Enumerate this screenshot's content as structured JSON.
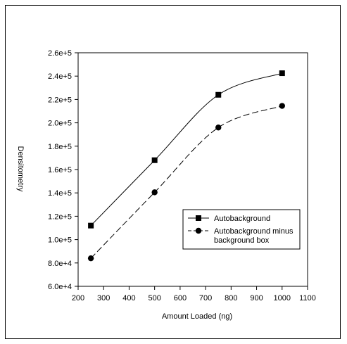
{
  "chart_data": {
    "type": "line",
    "title": "",
    "xlabel": "Amount Loaded (ng)",
    "ylabel": "Densitometry",
    "xlim": [
      200,
      1100
    ],
    "ylim": [
      60000,
      260000
    ],
    "x_ticks": [
      200,
      300,
      400,
      500,
      600,
      700,
      800,
      900,
      1000,
      1100
    ],
    "x_tick_labels": [
      "200",
      "300",
      "400",
      "500",
      "600",
      "700",
      "800",
      "900",
      "1000",
      "1100"
    ],
    "y_ticks": [
      60000,
      80000,
      100000,
      120000,
      140000,
      160000,
      180000,
      200000,
      220000,
      240000,
      260000
    ],
    "y_tick_labels": [
      "6.0e+4",
      "8.0e+4",
      "1.0e+5",
      "1.2e+5",
      "1.4e+5",
      "1.6e+5",
      "1.8e+5",
      "2.0e+5",
      "2.2e+5",
      "2.4e+5",
      "2.6e+5"
    ],
    "grid": false,
    "legend_position": "lower-right",
    "series": [
      {
        "name": "Autobackground",
        "x": [
          250,
          500,
          750,
          1000
        ],
        "values": [
          112000,
          168000,
          224000,
          242500
        ],
        "marker": "square",
        "line_style": "solid",
        "color": "#000000"
      },
      {
        "name": "Autobackground minus background box",
        "legend_lines": [
          "Autobackground minus",
          "background box"
        ],
        "x": [
          250,
          500,
          750,
          1000
        ],
        "values": [
          84000,
          140500,
          196000,
          214500
        ],
        "marker": "circle",
        "line_style": "dashed",
        "color": "#000000"
      }
    ]
  }
}
